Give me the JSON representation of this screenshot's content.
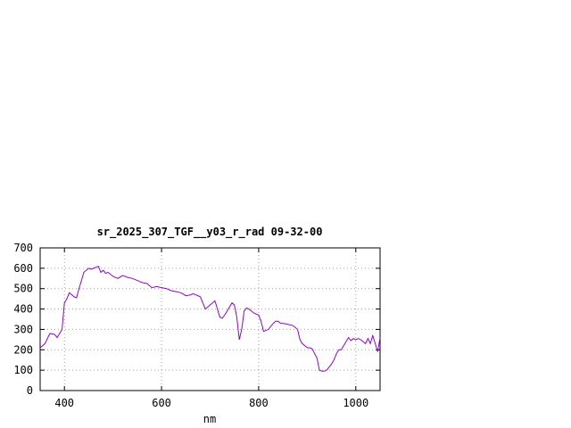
{
  "chart_data": {
    "type": "line",
    "title": "sr_2025_307_TGF__y03_r_rad 09-32-00",
    "xlabel": "nm",
    "ylabel": "",
    "xlim": [
      350,
      1050
    ],
    "ylim": [
      0,
      700
    ],
    "x_ticks": [
      "400",
      "600",
      "800",
      "1000"
    ],
    "x_tick_values": [
      400,
      600,
      800,
      1000
    ],
    "y_ticks": [
      "0",
      "100",
      "200",
      "300",
      "400",
      "500",
      "600",
      "700"
    ],
    "y_tick_values": [
      0,
      100,
      200,
      300,
      400,
      500,
      600,
      700
    ],
    "grid": true,
    "series": [
      {
        "name": "",
        "color": "#9400d3",
        "x": [
          350,
          360,
          370,
          380,
          385,
          390,
          395,
          400,
          405,
          410,
          420,
          425,
          430,
          435,
          440,
          450,
          455,
          460,
          470,
          475,
          480,
          485,
          490,
          500,
          510,
          520,
          530,
          540,
          550,
          560,
          570,
          580,
          590,
          600,
          610,
          620,
          630,
          640,
          650,
          660,
          665,
          670,
          680,
          685,
          690,
          700,
          705,
          710,
          715,
          720,
          725,
          730,
          740,
          745,
          750,
          755,
          760,
          765,
          770,
          775,
          780,
          790,
          800,
          805,
          810,
          815,
          820,
          830,
          835,
          840,
          845,
          850,
          860,
          870,
          880,
          885,
          890,
          900,
          905,
          910,
          920,
          925,
          930,
          935,
          940,
          950,
          955,
          960,
          965,
          970,
          980,
          985,
          990,
          995,
          1000,
          1005,
          1010,
          1015,
          1020,
          1025,
          1030,
          1035,
          1040,
          1045,
          1050
        ],
        "y": [
          210,
          230,
          280,
          275,
          260,
          280,
          300,
          430,
          450,
          480,
          460,
          455,
          500,
          540,
          580,
          600,
          595,
          600,
          610,
          580,
          590,
          575,
          580,
          560,
          550,
          565,
          555,
          550,
          540,
          530,
          525,
          505,
          510,
          505,
          500,
          490,
          485,
          480,
          465,
          470,
          475,
          470,
          460,
          430,
          400,
          420,
          430,
          440,
          400,
          360,
          355,
          370,
          410,
          430,
          420,
          360,
          250,
          300,
          390,
          405,
          400,
          380,
          370,
          340,
          290,
          295,
          300,
          330,
          340,
          340,
          330,
          330,
          325,
          320,
          300,
          250,
          230,
          210,
          210,
          205,
          160,
          100,
          95,
          95,
          100,
          130,
          150,
          180,
          200,
          200,
          240,
          260,
          245,
          255,
          250,
          255,
          250,
          240,
          230,
          255,
          230,
          270,
          230,
          190,
          260
        ]
      }
    ]
  }
}
